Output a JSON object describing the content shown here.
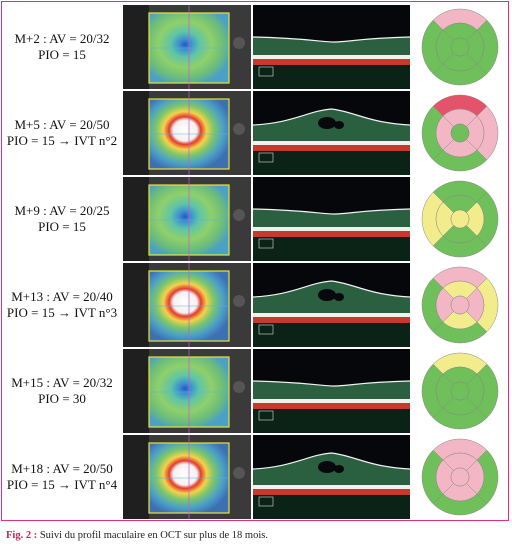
{
  "rows": [
    {
      "line1": "M+2 : AV = 20/32",
      "line2": "PIO = 15",
      "map": [
        "#f2b6c4",
        "#6fbf5a",
        "#6fbf5a",
        "#6fbf5a",
        "#6fbf5a",
        "#6fbf5a",
        "#6fbf5a",
        "#6fbf5a",
        "#6fbf5a"
      ],
      "fundus_variant": "normal",
      "oct_variant": "flat"
    },
    {
      "line1": "M+5 : AV = 20/50",
      "line2": "PIO = 15 → IVT n°2",
      "map": [
        "#e4536a",
        "#f2b6c4",
        "#f2b6c4",
        "#6fbf5a",
        "#f2b6c4",
        "#f2b6c4",
        "#6fbf5a",
        "#f2b6c4",
        "#6fbf5a"
      ],
      "fundus_variant": "edema",
      "oct_variant": "cyst"
    },
    {
      "line1": "M+9 : AV = 20/25",
      "line2": "PIO = 15",
      "map": [
        "#6fbf5a",
        "#6fbf5a",
        "#6fbf5a",
        "#f3ec8c",
        "#f3ec8c",
        "#f3ec8c",
        "#f3ec8c",
        "#6fbf5a",
        "#6fbf5a"
      ],
      "fundus_variant": "normal",
      "oct_variant": "flat"
    },
    {
      "line1": "M+13 : AV = 20/40",
      "line2": "PIO = 15 → IVT n°3",
      "map": [
        "#f2b6c4",
        "#f3ec8c",
        "#f3ec8c",
        "#6fbf5a",
        "#f2b6c4",
        "#f2b6c4",
        "#f2b6c4",
        "#f3ec8c",
        "#6fbf5a"
      ],
      "fundus_variant": "edema",
      "oct_variant": "cyst"
    },
    {
      "line1": "M+15 : AV = 20/32",
      "line2": "PIO = 30",
      "map": [
        "#f3ec8c",
        "#6fbf5a",
        "#6fbf5a",
        "#6fbf5a",
        "#6fbf5a",
        "#6fbf5a",
        "#6fbf5a",
        "#6fbf5a",
        "#6fbf5a"
      ],
      "fundus_variant": "normal",
      "oct_variant": "flat"
    },
    {
      "line1": "M+18 : AV = 20/50",
      "line2": "PIO = 15 → IVT n°4",
      "map": [
        "#f2b6c4",
        "#f2b6c4",
        "#6fbf5a",
        "#6fbf5a",
        "#f2b6c4",
        "#f2b6c4",
        "#f2b6c4",
        "#f2b6c4",
        "#6fbf5a"
      ],
      "fundus_variant": "edema",
      "oct_variant": "cyst"
    }
  ],
  "caption": {
    "label": "Fig. 2 :",
    "text": " Suivi du profil maculaire en OCT sur plus de 18 mois."
  },
  "colors": {
    "frame": "#e0307a",
    "caption_label": "#c4245f"
  }
}
